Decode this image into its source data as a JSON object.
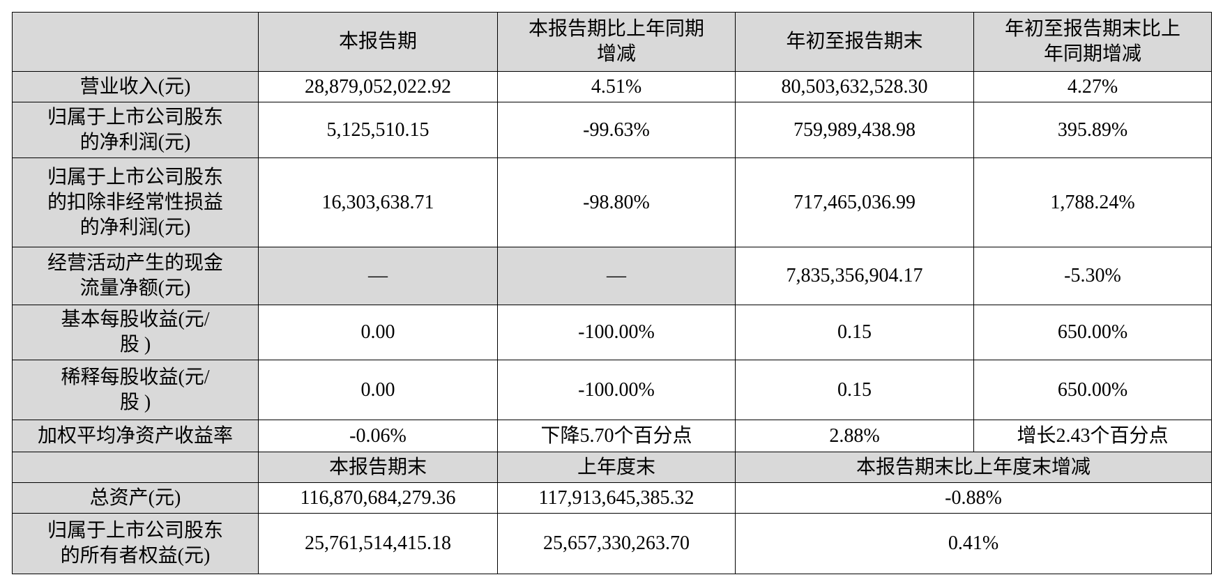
{
  "table": {
    "header": [
      [
        "本报告期"
      ],
      [
        "本报告期比上年同期",
        "增减"
      ],
      [
        "年初至报告期末"
      ],
      [
        "年初至报告期末比上",
        "年同期增减"
      ]
    ],
    "rows": [
      {
        "label": [
          "营业收入(元)"
        ],
        "cells": [
          "28,879,052,022.92",
          "4.51%",
          "80,503,632,528.30",
          "4.27%"
        ]
      },
      {
        "label": [
          "归属于上市公司股东",
          "的净利润(元)"
        ],
        "cells": [
          "5,125,510.15",
          "-99.63%",
          "759,989,438.98",
          "395.89%"
        ]
      },
      {
        "label": [
          "归属于上市公司股东",
          "的扣除非经常性损益",
          "的净利润(元)"
        ],
        "cells": [
          "16,303,638.71",
          "-98.80%",
          "717,465,036.99",
          "1,788.24%"
        ]
      },
      {
        "label": [
          "经营活动产生的现金",
          "流量净额(元)"
        ],
        "cells": [
          "—",
          "—",
          "7,835,356,904.17",
          "-5.30%"
        ]
      },
      {
        "label": [
          "基本每股收益(元/",
          "股 )"
        ],
        "cells": [
          "0.00",
          "-100.00%",
          "0.15",
          "650.00%"
        ]
      },
      {
        "label": [
          "稀释每股收益(元/",
          "股 )"
        ],
        "cells": [
          "0.00",
          "-100.00%",
          "0.15",
          "650.00%"
        ]
      },
      {
        "label": [
          "加权平均净资产收益率"
        ],
        "cells": [
          "-0.06%",
          "下降5.70个百分点",
          "2.88%",
          "增长2.43个百分点"
        ]
      }
    ],
    "subheader": [
      "本报告期末",
      "上年度末",
      "本报告期末比上年度末增减"
    ],
    "rows2": [
      {
        "label": [
          "总资产(元)"
        ],
        "cells": [
          "116,870,684,279.36",
          "117,913,645,385.32",
          "-0.88%"
        ]
      },
      {
        "label": [
          "归属于上市公司股东",
          "的所有者权益(元)"
        ],
        "cells": [
          "25,761,514,415.18",
          "25,657,330,263.70",
          "0.41%"
        ]
      }
    ]
  }
}
